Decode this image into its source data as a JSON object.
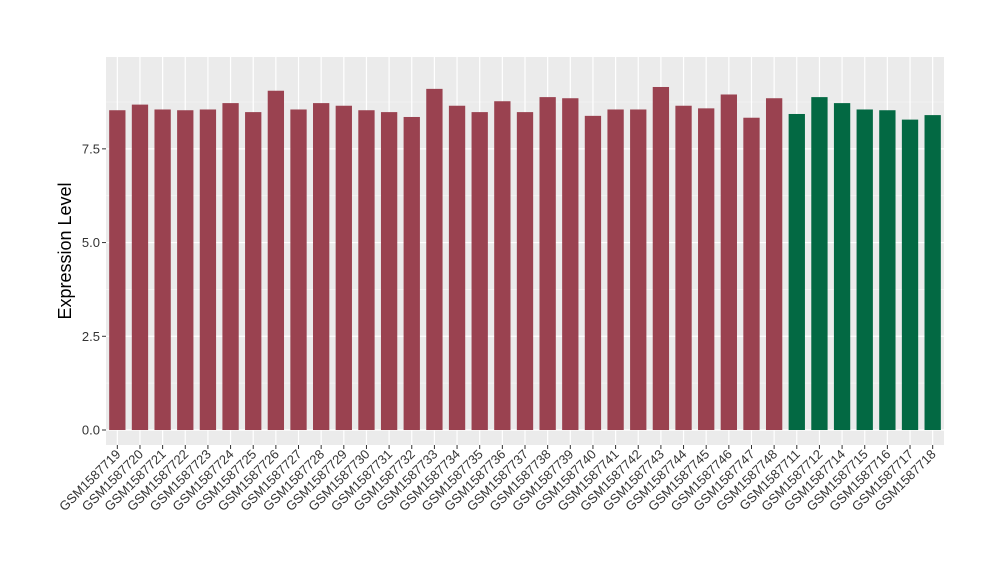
{
  "chart_data": {
    "type": "bar",
    "ylabel": "Expression Level",
    "xlabel": "",
    "ylim": [
      -0.4,
      9.95
    ],
    "yticks": [
      0.0,
      2.5,
      5.0,
      7.5
    ],
    "ytick_labels": [
      "0.0",
      "2.5",
      "5.0",
      "7.5"
    ],
    "grid": true,
    "legend": "none",
    "colors": {
      "panel": "#ebebeb",
      "grid_major": "#ffffff",
      "group_a": "#9a4250",
      "group_b": "#036943"
    },
    "categories": [
      "GSM1587719",
      "GSM1587720",
      "GSM1587721",
      "GSM1587722",
      "GSM1587723",
      "GSM1587724",
      "GSM1587725",
      "GSM1587726",
      "GSM1587727",
      "GSM1587728",
      "GSM1587729",
      "GSM1587730",
      "GSM1587731",
      "GSM1587732",
      "GSM1587733",
      "GSM1587734",
      "GSM1587735",
      "GSM1587736",
      "GSM1587737",
      "GSM1587738",
      "GSM1587739",
      "GSM1587740",
      "GSM1587741",
      "GSM1587742",
      "GSM1587743",
      "GSM1587744",
      "GSM1587745",
      "GSM1587746",
      "GSM1587747",
      "GSM1587748",
      "GSM1587711",
      "GSM1587712",
      "GSM1587714",
      "GSM1587715",
      "GSM1587716",
      "GSM1587717",
      "GSM1587718"
    ],
    "values": [
      8.53,
      8.68,
      8.55,
      8.53,
      8.55,
      8.72,
      8.48,
      9.05,
      8.55,
      8.72,
      8.65,
      8.53,
      8.48,
      8.35,
      9.1,
      8.65,
      8.48,
      8.77,
      8.48,
      8.88,
      8.85,
      8.38,
      8.55,
      8.55,
      9.15,
      8.65,
      8.58,
      8.95,
      8.33,
      8.85,
      8.43,
      8.88,
      8.72,
      8.55,
      8.53,
      8.28,
      8.4
    ],
    "groups": [
      "a",
      "a",
      "a",
      "a",
      "a",
      "a",
      "a",
      "a",
      "a",
      "a",
      "a",
      "a",
      "a",
      "a",
      "a",
      "a",
      "a",
      "a",
      "a",
      "a",
      "a",
      "a",
      "a",
      "a",
      "a",
      "a",
      "a",
      "a",
      "a",
      "a",
      "b",
      "b",
      "b",
      "b",
      "b",
      "b",
      "b"
    ]
  }
}
